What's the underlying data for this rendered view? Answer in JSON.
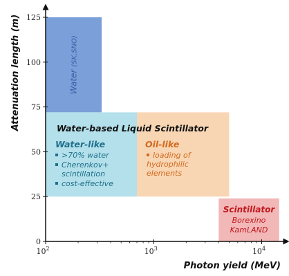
{
  "chart_data": {
    "type": "region-diagram",
    "xlabel": "Photon yield (MeV)",
    "ylabel": "Attenuation length (m)",
    "xscale": "log",
    "xlim": [
      100,
      15000
    ],
    "ylim": [
      0,
      125
    ],
    "x_ticks": [
      {
        "value": 100,
        "base": "10",
        "exp": "2"
      },
      {
        "value": 1000,
        "base": "10",
        "exp": "3"
      },
      {
        "value": 10000,
        "base": "10",
        "exp": "4"
      }
    ],
    "y_ticks": [
      {
        "value": 0,
        "label": "0"
      },
      {
        "value": 25,
        "label": "25"
      },
      {
        "value": 50,
        "label": "50"
      },
      {
        "value": 75,
        "label": "75"
      },
      {
        "value": 100,
        "label": "100"
      },
      {
        "value": 125,
        "label": "125"
      }
    ],
    "regions": [
      {
        "id": "water",
        "x": [
          100,
          330
        ],
        "y": [
          72,
          125
        ],
        "color": "#7a9fd9",
        "label": "Water",
        "sublabel": "(SK,SNO)"
      },
      {
        "id": "water-like",
        "x": [
          100,
          700
        ],
        "y": [
          25,
          72
        ],
        "color": "#b3e0ea",
        "title": "Water-like",
        "items": [
          ">70% water",
          "Cherenkov+ scintillation",
          "cost-effective"
        ]
      },
      {
        "id": "oil-like",
        "x": [
          700,
          5000
        ],
        "y": [
          25,
          72
        ],
        "color": "#f8d6b4",
        "title": "Oil-like",
        "items": [
          "loading of hydrophilic elements"
        ]
      },
      {
        "id": "scintillator",
        "x": [
          4000,
          14500
        ],
        "y": [
          0,
          24
        ],
        "color": "#f2b8b8",
        "title": "Scintillator",
        "lines": [
          "Borexino",
          "KamLAND"
        ]
      }
    ],
    "header_label": "Water-based Liquid Scintillator",
    "colors": {
      "water_text": "#3a5fa6",
      "water_like_text": "#1f6f8b",
      "oil_text": "#d2691e",
      "scint_text": "#c0171c"
    }
  }
}
